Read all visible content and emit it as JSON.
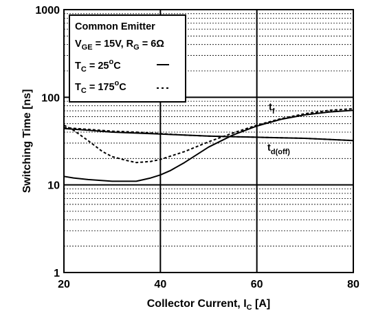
{
  "chart_data": {
    "type": "line",
    "xlabel": "Collector Current, I",
    "xlabel_sub": "C",
    "xlabel_unit": " [A]",
    "ylabel": "Switching Time [ns]",
    "x_scale": "linear",
    "y_scale": "log",
    "xlim": [
      20,
      80
    ],
    "ylim": [
      1,
      1000
    ],
    "x_ticks": [
      "20",
      "40",
      "60",
      "80"
    ],
    "y_ticks": [
      "1",
      "10",
      "100",
      "1000"
    ],
    "grid": "major and minor horizontal gridlines (dotted minor), major vertical lines",
    "legend": {
      "placement": "top-left",
      "line1": "Common Emitter",
      "line2": {
        "a": "V",
        "a_sub": "GE",
        "b": " = 15V, R",
        "b_sub": "G",
        "c": " = 6Ω"
      },
      "entries": [
        {
          "pre": "T",
          "sub": "C",
          "mid": " = 25",
          "sup": "o",
          "post": "C",
          "style": "solid"
        },
        {
          "pre": "T",
          "sub": "C",
          "mid": " = 175",
          "sup": "o",
          "post": "C",
          "style": "dashed"
        }
      ]
    },
    "annotations": [
      {
        "text": "t",
        "sub": "f",
        "series": "tf"
      },
      {
        "text": "t",
        "sub": "d(off)",
        "series": "td(off)"
      }
    ],
    "series": [
      {
        "curve": "tf",
        "condition": "25C",
        "style": "solid",
        "x": [
          20,
          22,
          25,
          30,
          35,
          38,
          40,
          42,
          45,
          50,
          55,
          60,
          65,
          70,
          75,
          80
        ],
        "y": [
          12.5,
          12,
          11.5,
          11,
          11,
          12,
          13,
          14.5,
          18,
          27,
          37,
          47,
          56,
          63,
          68,
          71
        ]
      },
      {
        "curve": "tf",
        "condition": "175C",
        "style": "dashed",
        "x": [
          20,
          22,
          25,
          28,
          30,
          33,
          35,
          38,
          40,
          45,
          50,
          55,
          60,
          65,
          70,
          75,
          80
        ],
        "y": [
          48,
          42,
          32,
          24,
          21,
          19,
          18,
          18.5,
          19.5,
          24,
          31,
          39,
          48,
          57,
          65,
          71,
          74
        ]
      },
      {
        "curve": "td(off)",
        "condition": "25C",
        "style": "solid",
        "x": [
          20,
          25,
          30,
          35,
          40,
          45,
          50,
          55,
          60,
          65,
          70,
          75,
          80
        ],
        "y": [
          44,
          42,
          40,
          39,
          38,
          37,
          36,
          35.5,
          35,
          34.5,
          34,
          33,
          32
        ]
      },
      {
        "curve": "td(off)",
        "condition": "175C",
        "style": "dashed",
        "x": [
          20,
          25,
          30,
          35,
          40,
          45,
          50,
          55,
          60,
          65,
          70,
          75,
          80
        ],
        "y": [
          45,
          43,
          41,
          40,
          38.5,
          37,
          36,
          35.5,
          35,
          34.5,
          34,
          33,
          32
        ]
      }
    ]
  }
}
